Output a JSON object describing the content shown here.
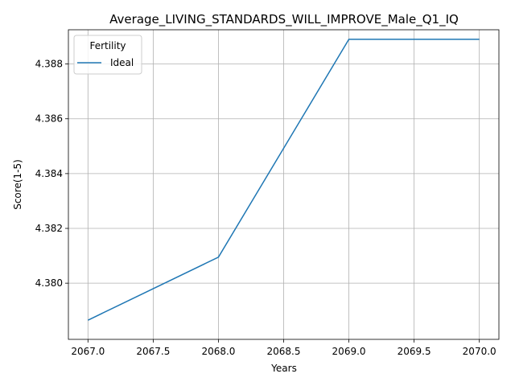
{
  "chart_data": {
    "type": "line",
    "title": "Average_LIVING_STANDARDS_WILL_IMPROVE_Male_Q1_IQ",
    "xlabel": "Years",
    "ylabel": "Score(1-5)",
    "xlim": [
      2066.85,
      2070.15
    ],
    "ylim": [
      4.37795,
      4.38925
    ],
    "x_ticks": [
      2067.0,
      2067.5,
      2068.0,
      2068.5,
      2069.0,
      2069.5,
      2070.0
    ],
    "x_tick_labels": [
      "2067.0",
      "2067.5",
      "2068.0",
      "2068.5",
      "2069.0",
      "2069.5",
      "2070.0"
    ],
    "y_ticks": [
      4.38,
      4.382,
      4.384,
      4.386,
      4.388
    ],
    "y_tick_labels": [
      "4.380",
      "4.382",
      "4.384",
      "4.386",
      "4.388"
    ],
    "grid": true,
    "legend": {
      "title": "Fertility",
      "placement": "top-left"
    },
    "series": [
      {
        "name": "Ideal",
        "color": "#1f77b4",
        "x": [
          2067,
          2068,
          2069,
          2070
        ],
        "y": [
          4.37865,
          4.38095,
          4.3889,
          4.3889
        ]
      }
    ]
  }
}
